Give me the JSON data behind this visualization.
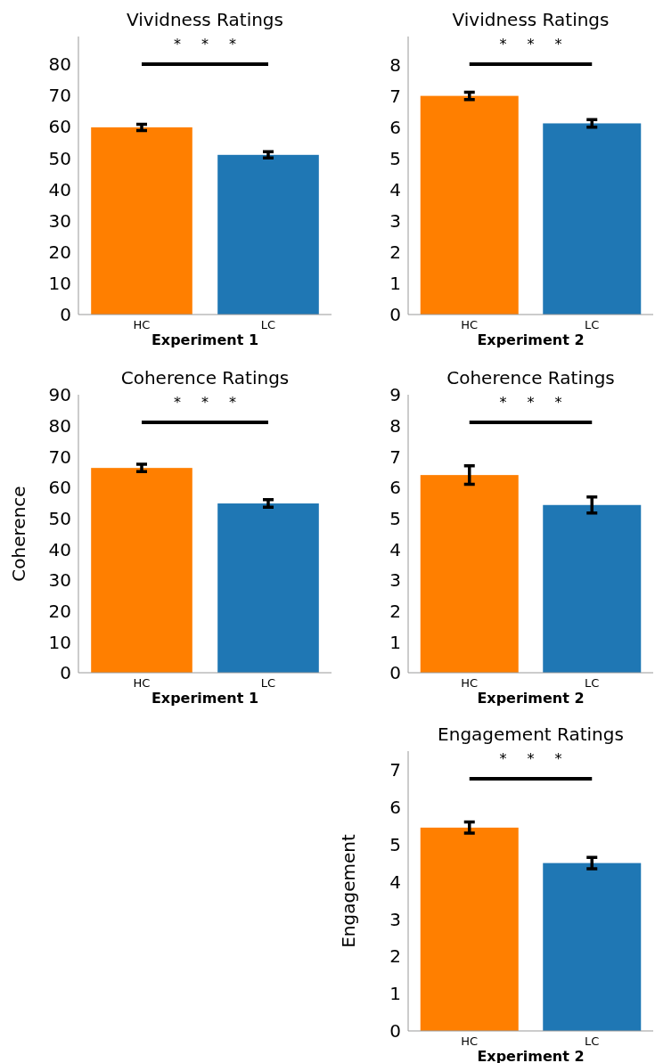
{
  "chart_data": [
    {
      "type": "bar",
      "title": "Vividness Ratings",
      "xlabel": "Experiment 1",
      "categories": [
        "HC",
        "LC"
      ],
      "values": [
        59.8,
        51.0
      ],
      "colors": [
        "#ff7f00",
        "#1f77b4"
      ],
      "errors": [
        1.0,
        1.0
      ],
      "ylim": [
        0,
        88.8
      ],
      "yticks": [
        0,
        10,
        20,
        30,
        40,
        50,
        60,
        70,
        80
      ],
      "annotations": [
        "* * *"
      ]
    },
    {
      "type": "bar",
      "title": "Vividness Ratings",
      "xlabel": "Experiment 2",
      "categories": [
        "HC",
        "LC"
      ],
      "values": [
        7.0,
        6.12
      ],
      "colors": [
        "#ff7f00",
        "#1f77b4"
      ],
      "errors": [
        0.12,
        0.12
      ],
      "ylim": [
        0,
        8.9
      ],
      "yticks": [
        0,
        1,
        2,
        3,
        4,
        5,
        6,
        7,
        8
      ],
      "annotations": [
        "* * *"
      ]
    },
    {
      "type": "bar",
      "title": "Coherence Ratings",
      "xlabel": "Experiment 1",
      "ylabel": "Coherence",
      "categories": [
        "HC",
        "LC"
      ],
      "values": [
        66.3,
        54.8
      ],
      "colors": [
        "#ff7f00",
        "#1f77b4"
      ],
      "errors": [
        1.2,
        1.2
      ],
      "ylim": [
        0,
        90
      ],
      "yticks": [
        0,
        10,
        20,
        30,
        40,
        50,
        60,
        70,
        80,
        90
      ],
      "annotations": [
        "* * *"
      ]
    },
    {
      "type": "bar",
      "title": "Coherence Ratings",
      "xlabel": "Experiment 2",
      "categories": [
        "HC",
        "LC"
      ],
      "values": [
        6.4,
        5.43
      ],
      "colors": [
        "#ff7f00",
        "#1f77b4"
      ],
      "errors": [
        0.3,
        0.26
      ],
      "ylim": [
        0,
        9
      ],
      "yticks": [
        0,
        1,
        2,
        3,
        4,
        5,
        6,
        7,
        8,
        9
      ],
      "annotations": [
        "* * *"
      ]
    },
    {
      "type": "bar",
      "title": "Engagement Ratings",
      "xlabel": "Experiment 2",
      "ylabel": "Engagement",
      "categories": [
        "HC",
        "LC"
      ],
      "values": [
        5.45,
        4.5
      ],
      "colors": [
        "#ff7f00",
        "#1f77b4"
      ],
      "errors": [
        0.15,
        0.15
      ],
      "ylim": [
        0,
        7.5
      ],
      "yticks": [
        0,
        1,
        2,
        3,
        4,
        5,
        6,
        7
      ],
      "annotations": [
        "* * *"
      ]
    }
  ]
}
